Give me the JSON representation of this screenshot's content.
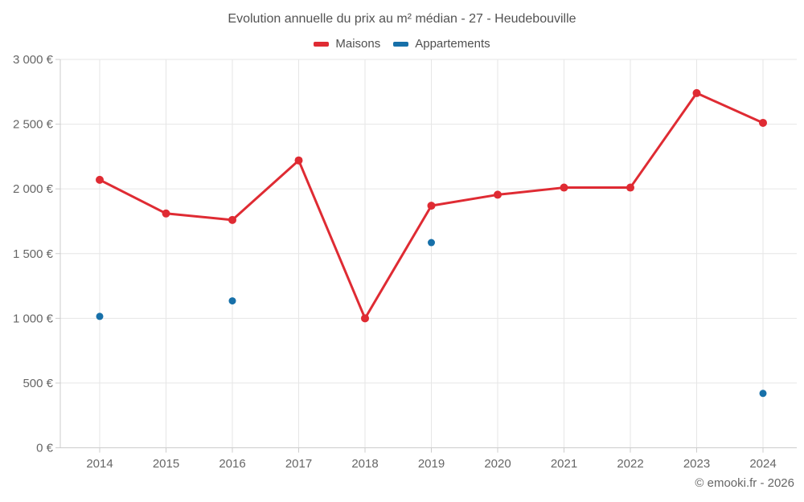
{
  "chart_data": {
    "type": "line",
    "title": "Evolution annuelle du prix au m² médian - 27 - Heudebouville",
    "categories": [
      "2014",
      "2015",
      "2016",
      "2017",
      "2018",
      "2019",
      "2020",
      "2021",
      "2022",
      "2023",
      "2024"
    ],
    "series": [
      {
        "name": "Maisons",
        "color": "#df2b33",
        "style": "line+markers",
        "values": [
          2070,
          1810,
          1760,
          2220,
          1000,
          1870,
          1955,
          2010,
          2010,
          2740,
          2510
        ]
      },
      {
        "name": "Appartements",
        "color": "#1770a9",
        "style": "markers",
        "values": [
          1015,
          null,
          1135,
          null,
          null,
          1585,
          null,
          null,
          null,
          null,
          420
        ]
      }
    ],
    "xlabel": "",
    "ylabel": "",
    "ylim": [
      0,
      3000
    ],
    "ytick_step": 500,
    "ytick_suffix": " €",
    "ytick_labels": [
      "0 €",
      "500 €",
      "1 000 €",
      "1 500 €",
      "2 000 €",
      "2 500 €",
      "3 000 €"
    ],
    "grid": true,
    "legend_position": "top"
  },
  "footer": {
    "credit": "© emooki.fr - 2026"
  },
  "colors": {
    "maisons": "#df2b33",
    "appartements": "#1770a9",
    "gridline": "#e6e6e6",
    "axis": "#cccccc",
    "tick": "#cccccc",
    "axis_label": "#666666",
    "title": "#535353",
    "background": "#ffffff"
  }
}
